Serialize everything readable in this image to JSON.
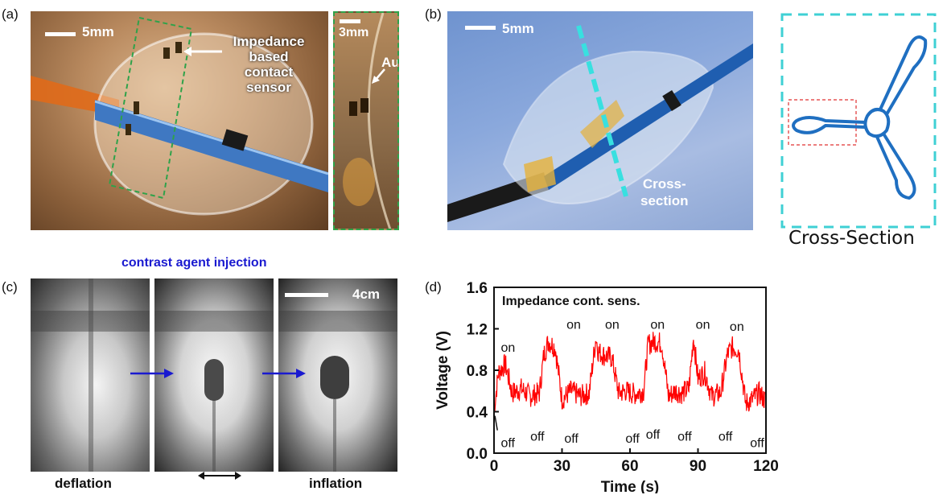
{
  "panel_a": {
    "label": "(a)",
    "scale_main": "5mm",
    "annotation_sensor": [
      "Impedance",
      "based",
      "contact",
      "sensor"
    ],
    "scale_inset": "3mm",
    "annotation_au": "Au"
  },
  "panel_b": {
    "label": "(b)",
    "scale": "5mm",
    "annotation_cross": [
      "Cross-",
      "section"
    ],
    "cross_section_caption": "Cross-Section",
    "colors": {
      "dashed_box": "#3fd0d4",
      "shape": "#1f6fc1",
      "zoom_box": "#e03030"
    }
  },
  "panel_c": {
    "label": "(c)",
    "title": "contrast agent injection",
    "scale": "4cm",
    "caption_left": "deflation",
    "caption_right": "inflation",
    "arrow_color": "#1a1ad0"
  },
  "panel_d": {
    "label": "(d)",
    "chart_data": {
      "type": "line",
      "title": "Impedance cont. sens.",
      "xlabel": "Time (s)",
      "ylabel": "Voltage (V)",
      "xlim": [
        0,
        120
      ],
      "ylim": [
        0.0,
        1.6
      ],
      "xticks": [
        "0",
        "30",
        "60",
        "90",
        "120"
      ],
      "yticks": [
        "0.0",
        "0.4",
        "0.8",
        "1.2",
        "1.6"
      ],
      "series": [
        {
          "color": "#ff0000",
          "x": [
            0,
            2,
            5,
            8,
            12,
            16,
            20,
            22,
            24,
            27,
            30,
            34,
            38,
            42,
            45,
            46,
            48,
            52,
            55,
            58,
            62,
            66,
            68,
            71,
            74,
            77,
            80,
            83,
            86,
            88,
            90,
            93,
            96,
            100,
            103,
            105,
            108,
            111,
            114,
            117,
            120
          ],
          "y": [
            0.42,
            0.78,
            0.86,
            0.58,
            0.62,
            0.55,
            0.58,
            0.95,
            1.08,
            1.02,
            0.52,
            0.6,
            0.55,
            0.58,
            1.12,
            0.98,
            0.95,
            0.92,
            0.58,
            0.6,
            0.57,
            0.6,
            1.05,
            1.08,
            1.06,
            0.55,
            0.6,
            0.58,
            0.62,
            1.12,
            0.72,
            0.78,
            0.55,
            0.58,
            0.95,
            1.02,
            1.0,
            0.48,
            0.52,
            0.58,
            0.5
          ]
        }
      ],
      "annotations_on": [
        {
          "text": "on",
          "x": 3,
          "y": 0.98
        },
        {
          "text": "on",
          "x": 32,
          "y": 1.2
        },
        {
          "text": "on",
          "x": 49,
          "y": 1.2
        },
        {
          "text": "on",
          "x": 69,
          "y": 1.2
        },
        {
          "text": "on",
          "x": 89,
          "y": 1.2
        },
        {
          "text": "on",
          "x": 104,
          "y": 1.18
        }
      ],
      "annotations_off": [
        {
          "text": "off",
          "x": 3,
          "y": 0.06
        },
        {
          "text": "off",
          "x": 16,
          "y": 0.12
        },
        {
          "text": "off",
          "x": 31,
          "y": 0.1
        },
        {
          "text": "off",
          "x": 58,
          "y": 0.1
        },
        {
          "text": "off",
          "x": 67,
          "y": 0.14
        },
        {
          "text": "off",
          "x": 81,
          "y": 0.12
        },
        {
          "text": "off",
          "x": 99,
          "y": 0.12
        },
        {
          "text": "off",
          "x": 113,
          "y": 0.06
        }
      ]
    }
  }
}
